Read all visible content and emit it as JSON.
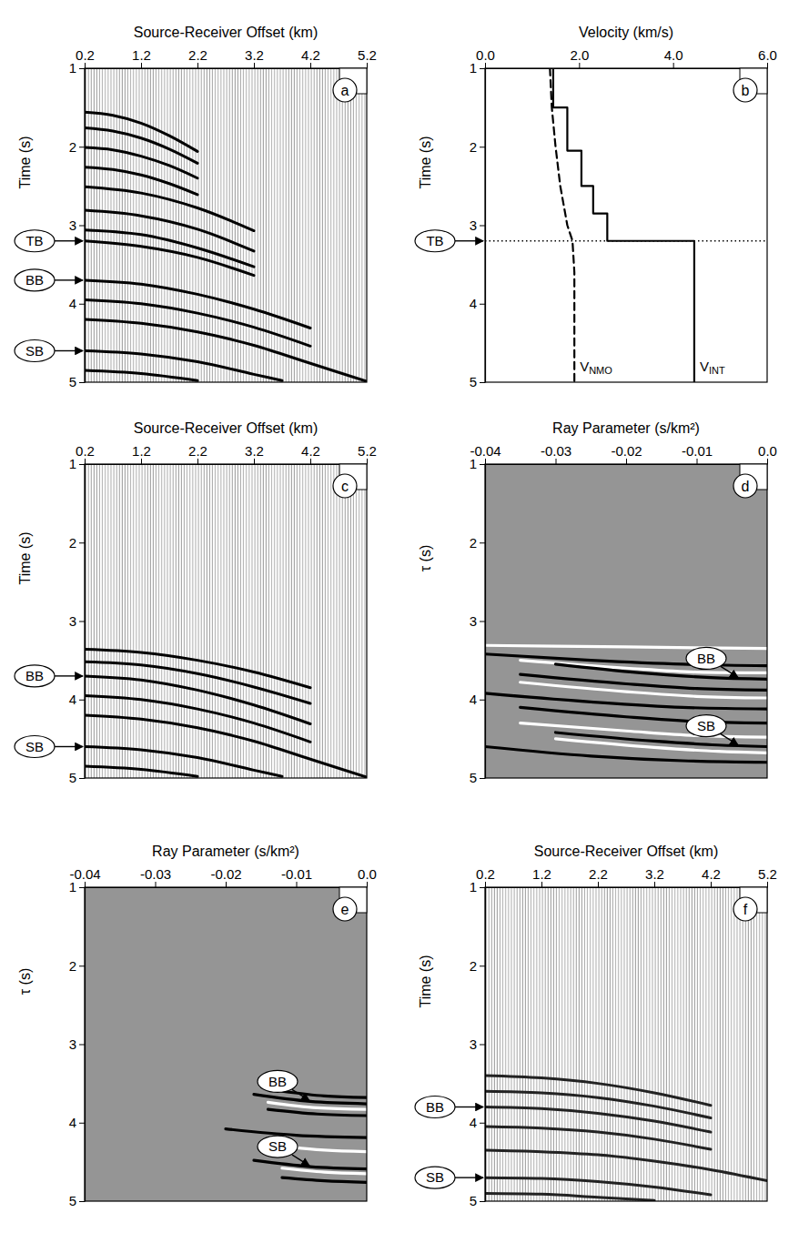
{
  "chart_data": [
    {
      "type": "gather",
      "panel_label": "a",
      "xlabel": "Source-Receiver Offset (km)",
      "ylabel": "Time (s)",
      "xlim": [
        0.2,
        5.2
      ],
      "xticks": [
        0.2,
        1.2,
        2.2,
        3.2,
        4.2,
        5.2
      ],
      "ylim": [
        1,
        5
      ],
      "yticks": [
        1,
        2,
        3,
        4,
        5
      ],
      "series": [
        {
          "color": "#000000",
          "x": [
            0.2,
            0.7,
            1.2,
            1.7,
            2.2
          ],
          "values": [
            1.56,
            1.6,
            1.7,
            1.86,
            2.06
          ]
        },
        {
          "color": "#000000",
          "x": [
            0.2,
            0.7,
            1.2,
            1.7,
            2.2
          ],
          "values": [
            1.76,
            1.8,
            1.89,
            2.03,
            2.21
          ]
        },
        {
          "color": "#000000",
          "x": [
            0.2,
            0.7,
            1.2,
            1.7,
            2.2
          ],
          "values": [
            2.01,
            2.04,
            2.12,
            2.24,
            2.4
          ]
        },
        {
          "color": "#000000",
          "x": [
            0.2,
            0.7,
            1.2,
            1.7,
            2.2
          ],
          "values": [
            2.26,
            2.29,
            2.36,
            2.47,
            2.61
          ]
        },
        {
          "color": "#000000",
          "x": [
            0.2,
            1.2,
            2.2,
            3.2
          ],
          "values": [
            2.51,
            2.59,
            2.78,
            3.07
          ]
        },
        {
          "color": "#000000",
          "x": [
            0.2,
            1.2,
            2.2,
            3.2
          ],
          "values": [
            2.81,
            2.88,
            3.05,
            3.33
          ]
        },
        {
          "color": "#000000",
          "x": [
            0.2,
            1.2,
            2.2,
            3.2
          ],
          "values": [
            3.06,
            3.12,
            3.29,
            3.53
          ]
        },
        {
          "color": "#000000",
          "x": [
            0.2,
            1.2,
            2.2,
            3.2
          ],
          "values": [
            3.2,
            3.27,
            3.41,
            3.64
          ]
        },
        {
          "color": "#000000",
          "x": [
            0.2,
            1.2,
            2.2,
            3.2,
            4.2
          ],
          "values": [
            3.7,
            3.75,
            3.88,
            4.07,
            4.31
          ]
        },
        {
          "color": "#000000",
          "x": [
            0.2,
            1.2,
            2.2,
            3.2,
            4.2
          ],
          "values": [
            3.95,
            4.0,
            4.12,
            4.3,
            4.54
          ]
        },
        {
          "color": "#000000",
          "x": [
            0.2,
            1.2,
            2.2,
            3.2,
            4.2,
            5.2
          ],
          "values": [
            4.2,
            4.25,
            4.36,
            4.53,
            4.76,
            4.99
          ]
        },
        {
          "color": "#000000",
          "x": [
            0.2,
            1.2,
            2.2,
            3.2,
            3.7
          ],
          "values": [
            4.6,
            4.64,
            4.74,
            4.9,
            4.98
          ]
        },
        {
          "color": "#000000",
          "x": [
            0.2,
            1.2,
            2.2
          ],
          "values": [
            4.85,
            4.89,
            4.98
          ]
        }
      ],
      "annotations": [
        {
          "text": "TB",
          "y": 3.2
        },
        {
          "text": "BB",
          "y": 3.7
        },
        {
          "text": "SB",
          "y": 4.6
        }
      ]
    },
    {
      "type": "line",
      "panel_label": "b",
      "xlabel": "Velocity (km/s)",
      "ylabel": "Time (s)",
      "xlim": [
        0,
        6
      ],
      "xticks": [
        {
          "value": 0,
          "label": "0.0"
        },
        {
          "value": 2,
          "label": "2.0"
        },
        {
          "value": 4,
          "label": "4.0"
        },
        {
          "value": 6,
          "label": "6.0"
        }
      ],
      "ylim": [
        1,
        5
      ],
      "yticks": [
        1,
        2,
        3,
        4,
        5
      ],
      "series": [
        {
          "name": "VNMO",
          "color": "#000000",
          "line_style": "dashed",
          "x": [
            1.38,
            1.42,
            1.5,
            1.6,
            1.75,
            1.86,
            1.9,
            1.9
          ],
          "values": [
            1.0,
            1.5,
            2.0,
            2.5,
            3.0,
            3.2,
            3.6,
            5.0
          ]
        },
        {
          "name": "VINT",
          "color": "#000000",
          "line_style": "solid",
          "x": [
            1.45,
            1.45,
            1.75,
            1.75,
            2.05,
            2.05,
            2.3,
            2.3,
            2.6,
            2.6,
            4.45,
            4.45
          ],
          "values": [
            1.0,
            1.5,
            1.5,
            2.05,
            2.05,
            2.5,
            2.5,
            2.85,
            2.85,
            3.2,
            3.2,
            5.0
          ]
        }
      ],
      "annotations": [
        {
          "text": "TB",
          "y": 3.2,
          "line_style": "dotted"
        }
      ]
    },
    {
      "type": "gather",
      "panel_label": "c",
      "xlabel": "Source-Receiver Offset (km)",
      "ylabel": "Time (s)",
      "xlim": [
        0.2,
        5.2
      ],
      "xticks": [
        0.2,
        1.2,
        2.2,
        3.2,
        4.2,
        5.2
      ],
      "ylim": [
        1,
        5
      ],
      "yticks": [
        1,
        2,
        3,
        4,
        5
      ],
      "series": [
        {
          "color": "#000000",
          "x": [
            0.2,
            1.2,
            2.2,
            3.2,
            4.2
          ],
          "values": [
            3.36,
            3.4,
            3.5,
            3.65,
            3.85
          ]
        },
        {
          "color": "#000000",
          "x": [
            0.2,
            1.2,
            2.2,
            3.2,
            4.2
          ],
          "values": [
            3.52,
            3.56,
            3.67,
            3.84,
            4.05
          ]
        },
        {
          "color": "#000000",
          "x": [
            0.2,
            1.2,
            2.2,
            3.2,
            4.2
          ],
          "values": [
            3.7,
            3.75,
            3.88,
            4.07,
            4.31
          ]
        },
        {
          "color": "#000000",
          "x": [
            0.2,
            1.2,
            2.2,
            3.2,
            4.2
          ],
          "values": [
            3.95,
            4.0,
            4.12,
            4.3,
            4.54
          ]
        },
        {
          "color": "#000000",
          "x": [
            0.2,
            1.2,
            2.2,
            3.2,
            4.2,
            5.2
          ],
          "values": [
            4.2,
            4.25,
            4.36,
            4.53,
            4.76,
            4.99
          ]
        },
        {
          "color": "#000000",
          "x": [
            0.2,
            1.2,
            2.2,
            3.2,
            3.7
          ],
          "values": [
            4.6,
            4.64,
            4.74,
            4.9,
            4.98
          ]
        },
        {
          "color": "#000000",
          "x": [
            0.2,
            1.2,
            2.2
          ],
          "values": [
            4.85,
            4.89,
            4.98
          ]
        }
      ],
      "annotations": [
        {
          "text": "BB",
          "y": 3.7
        },
        {
          "text": "SB",
          "y": 4.6
        }
      ]
    },
    {
      "type": "taup",
      "panel_label": "d",
      "xlabel": "Ray Parameter (s/km²)",
      "ylabel": "τ (s)",
      "xlim": [
        -0.04,
        0
      ],
      "xticks": [
        -0.04,
        -0.03,
        -0.02,
        -0.01,
        {
          "value": 0,
          "label": "0.0"
        }
      ],
      "ylim": [
        1,
        5
      ],
      "yticks": [
        1,
        2,
        3,
        4,
        5
      ],
      "series": [
        {
          "color": "#ffffff",
          "x": [
            -0.04,
            -0.02,
            0
          ],
          "values": [
            3.31,
            3.33,
            3.35
          ]
        },
        {
          "color": "#000000",
          "x": [
            -0.04,
            -0.025,
            -0.012,
            0
          ],
          "values": [
            3.42,
            3.5,
            3.55,
            3.57
          ]
        },
        {
          "color": "#ffffff",
          "x": [
            -0.035,
            -0.02,
            -0.01,
            0
          ],
          "values": [
            3.5,
            3.6,
            3.65,
            3.66
          ]
        },
        {
          "color": "#000000",
          "x": [
            -0.03,
            -0.018,
            -0.008,
            0
          ],
          "values": [
            3.55,
            3.66,
            3.72,
            3.74
          ]
        },
        {
          "color": "#000000",
          "x": [
            -0.035,
            -0.02,
            -0.01,
            0
          ],
          "values": [
            3.68,
            3.8,
            3.86,
            3.88
          ]
        },
        {
          "color": "#ffffff",
          "x": [
            -0.035,
            -0.02,
            -0.01,
            0
          ],
          "values": [
            3.78,
            3.9,
            3.96,
            3.98
          ]
        },
        {
          "color": "#000000",
          "x": [
            -0.04,
            -0.025,
            -0.012,
            0
          ],
          "values": [
            3.92,
            4.03,
            4.1,
            4.12
          ]
        },
        {
          "color": "#000000",
          "x": [
            -0.035,
            -0.02,
            -0.01,
            0
          ],
          "values": [
            4.1,
            4.22,
            4.28,
            4.3
          ]
        },
        {
          "color": "#ffffff",
          "x": [
            -0.035,
            -0.02,
            -0.01,
            0
          ],
          "values": [
            4.3,
            4.4,
            4.46,
            4.48
          ]
        },
        {
          "color": "#000000",
          "x": [
            -0.03,
            -0.016,
            -0.007,
            0
          ],
          "values": [
            4.42,
            4.53,
            4.58,
            4.6
          ]
        },
        {
          "color": "#ffffff",
          "x": [
            -0.03,
            -0.016,
            -0.007,
            0
          ],
          "values": [
            4.5,
            4.61,
            4.66,
            4.68
          ]
        },
        {
          "color": "#000000",
          "x": [
            -0.04,
            -0.025,
            -0.012,
            0
          ],
          "values": [
            4.6,
            4.72,
            4.78,
            4.8
          ]
        }
      ],
      "annotations": [
        {
          "text": "BB",
          "x": -0.004,
          "y": 3.73
        },
        {
          "text": "SB",
          "x": -0.004,
          "y": 4.59
        }
      ]
    },
    {
      "type": "taup",
      "panel_label": "e",
      "xlabel": "Ray Parameter (s/km²)",
      "ylabel": "τ (s)",
      "xlim": [
        -0.04,
        0
      ],
      "xticks": [
        -0.04,
        -0.03,
        -0.02,
        -0.01,
        {
          "value": 0,
          "label": "0.0"
        }
      ],
      "ylim": [
        1,
        5
      ],
      "yticks": [
        1,
        2,
        3,
        4,
        5
      ],
      "series": [
        {
          "color": "#000000",
          "x": [
            -0.012,
            -0.006,
            0
          ],
          "values": [
            3.6,
            3.66,
            3.68
          ]
        },
        {
          "color": "#000000",
          "x": [
            -0.016,
            -0.008,
            0
          ],
          "values": [
            3.64,
            3.73,
            3.76
          ]
        },
        {
          "color": "#ffffff",
          "x": [
            -0.014,
            -0.007,
            0
          ],
          "values": [
            3.74,
            3.81,
            3.83
          ]
        },
        {
          "color": "#000000",
          "x": [
            -0.014,
            -0.007,
            0
          ],
          "values": [
            3.83,
            3.89,
            3.91
          ]
        },
        {
          "color": "#000000",
          "x": [
            -0.02,
            -0.01,
            0
          ],
          "values": [
            4.08,
            4.16,
            4.19
          ]
        },
        {
          "color": "#ffffff",
          "x": [
            -0.012,
            -0.006,
            0
          ],
          "values": [
            4.3,
            4.35,
            4.37
          ]
        },
        {
          "color": "#000000",
          "x": [
            -0.016,
            -0.008,
            0
          ],
          "values": [
            4.48,
            4.56,
            4.59
          ]
        },
        {
          "color": "#ffffff",
          "x": [
            -0.012,
            -0.006,
            0
          ],
          "values": [
            4.58,
            4.63,
            4.65
          ]
        },
        {
          "color": "#000000",
          "x": [
            -0.012,
            -0.006,
            0
          ],
          "values": [
            4.7,
            4.74,
            4.76
          ]
        }
      ],
      "annotations": [
        {
          "text": "BB",
          "x": -0.008,
          "y": 3.73
        },
        {
          "text": "SB",
          "x": -0.008,
          "y": 4.56
        }
      ]
    },
    {
      "type": "gather",
      "panel_label": "f",
      "xlabel": "Source-Receiver Offset (km)",
      "ylabel": "Time (s)",
      "xlim": [
        0.2,
        5.2
      ],
      "xticks": [
        0.2,
        1.2,
        2.2,
        3.2,
        4.2,
        5.2
      ],
      "ylim": [
        1,
        5
      ],
      "yticks": [
        1,
        2,
        3,
        4,
        5
      ],
      "series": [
        {
          "color": "#222222",
          "x": [
            0.2,
            1.2,
            2.2,
            3.2,
            4.2
          ],
          "values": [
            3.4,
            3.43,
            3.5,
            3.62,
            3.78
          ]
        },
        {
          "color": "#222222",
          "x": [
            0.2,
            1.2,
            2.2,
            3.2,
            4.2
          ],
          "values": [
            3.6,
            3.62,
            3.68,
            3.79,
            3.94
          ]
        },
        {
          "color": "#222222",
          "x": [
            0.2,
            1.2,
            2.2,
            3.2,
            4.2
          ],
          "values": [
            3.8,
            3.82,
            3.88,
            3.98,
            4.12
          ]
        },
        {
          "color": "#222222",
          "x": [
            0.2,
            1.2,
            2.2,
            3.2,
            4.2
          ],
          "values": [
            4.05,
            4.07,
            4.12,
            4.21,
            4.34
          ]
        },
        {
          "color": "#222222",
          "x": [
            0.2,
            1.2,
            2.2,
            3.2,
            4.2,
            5.2
          ],
          "values": [
            4.35,
            4.37,
            4.41,
            4.49,
            4.6,
            4.74
          ]
        },
        {
          "color": "#222222",
          "x": [
            0.2,
            1.2,
            2.2,
            3.2,
            4.2
          ],
          "values": [
            4.7,
            4.71,
            4.75,
            4.82,
            4.92
          ]
        },
        {
          "color": "#222222",
          "x": [
            0.2,
            1.2,
            2.2,
            3.2
          ],
          "values": [
            4.9,
            4.91,
            4.95,
            4.99
          ]
        }
      ],
      "annotations": [
        {
          "text": "BB",
          "y": 3.8
        },
        {
          "text": "SB",
          "y": 4.7
        }
      ]
    }
  ]
}
